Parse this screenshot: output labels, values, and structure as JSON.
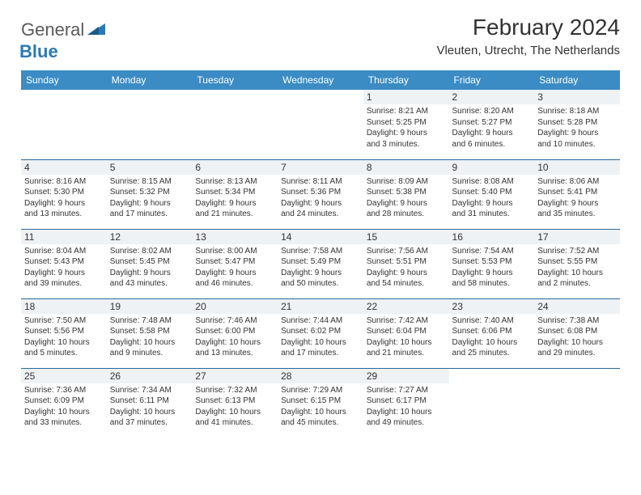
{
  "logo": {
    "text1": "General",
    "text2": "Blue"
  },
  "title": "February 2024",
  "location": "Vleuten, Utrecht, The Netherlands",
  "colors": {
    "header_bg": "#3b8bc4",
    "header_text": "#ffffff",
    "daynum_bg": "#eef2f5",
    "row_border": "#2a6a9a",
    "logo_blue": "#2a7ab8",
    "logo_gray": "#5a5a5a"
  },
  "weekdays": [
    "Sunday",
    "Monday",
    "Tuesday",
    "Wednesday",
    "Thursday",
    "Friday",
    "Saturday"
  ],
  "weeks": [
    [
      null,
      null,
      null,
      null,
      {
        "n": "1",
        "sr": "Sunrise: 8:21 AM",
        "ss": "Sunset: 5:25 PM",
        "d1": "Daylight: 9 hours",
        "d2": "and 3 minutes."
      },
      {
        "n": "2",
        "sr": "Sunrise: 8:20 AM",
        "ss": "Sunset: 5:27 PM",
        "d1": "Daylight: 9 hours",
        "d2": "and 6 minutes."
      },
      {
        "n": "3",
        "sr": "Sunrise: 8:18 AM",
        "ss": "Sunset: 5:28 PM",
        "d1": "Daylight: 9 hours",
        "d2": "and 10 minutes."
      }
    ],
    [
      {
        "n": "4",
        "sr": "Sunrise: 8:16 AM",
        "ss": "Sunset: 5:30 PM",
        "d1": "Daylight: 9 hours",
        "d2": "and 13 minutes."
      },
      {
        "n": "5",
        "sr": "Sunrise: 8:15 AM",
        "ss": "Sunset: 5:32 PM",
        "d1": "Daylight: 9 hours",
        "d2": "and 17 minutes."
      },
      {
        "n": "6",
        "sr": "Sunrise: 8:13 AM",
        "ss": "Sunset: 5:34 PM",
        "d1": "Daylight: 9 hours",
        "d2": "and 21 minutes."
      },
      {
        "n": "7",
        "sr": "Sunrise: 8:11 AM",
        "ss": "Sunset: 5:36 PM",
        "d1": "Daylight: 9 hours",
        "d2": "and 24 minutes."
      },
      {
        "n": "8",
        "sr": "Sunrise: 8:09 AM",
        "ss": "Sunset: 5:38 PM",
        "d1": "Daylight: 9 hours",
        "d2": "and 28 minutes."
      },
      {
        "n": "9",
        "sr": "Sunrise: 8:08 AM",
        "ss": "Sunset: 5:40 PM",
        "d1": "Daylight: 9 hours",
        "d2": "and 31 minutes."
      },
      {
        "n": "10",
        "sr": "Sunrise: 8:06 AM",
        "ss": "Sunset: 5:41 PM",
        "d1": "Daylight: 9 hours",
        "d2": "and 35 minutes."
      }
    ],
    [
      {
        "n": "11",
        "sr": "Sunrise: 8:04 AM",
        "ss": "Sunset: 5:43 PM",
        "d1": "Daylight: 9 hours",
        "d2": "and 39 minutes."
      },
      {
        "n": "12",
        "sr": "Sunrise: 8:02 AM",
        "ss": "Sunset: 5:45 PM",
        "d1": "Daylight: 9 hours",
        "d2": "and 43 minutes."
      },
      {
        "n": "13",
        "sr": "Sunrise: 8:00 AM",
        "ss": "Sunset: 5:47 PM",
        "d1": "Daylight: 9 hours",
        "d2": "and 46 minutes."
      },
      {
        "n": "14",
        "sr": "Sunrise: 7:58 AM",
        "ss": "Sunset: 5:49 PM",
        "d1": "Daylight: 9 hours",
        "d2": "and 50 minutes."
      },
      {
        "n": "15",
        "sr": "Sunrise: 7:56 AM",
        "ss": "Sunset: 5:51 PM",
        "d1": "Daylight: 9 hours",
        "d2": "and 54 minutes."
      },
      {
        "n": "16",
        "sr": "Sunrise: 7:54 AM",
        "ss": "Sunset: 5:53 PM",
        "d1": "Daylight: 9 hours",
        "d2": "and 58 minutes."
      },
      {
        "n": "17",
        "sr": "Sunrise: 7:52 AM",
        "ss": "Sunset: 5:55 PM",
        "d1": "Daylight: 10 hours",
        "d2": "and 2 minutes."
      }
    ],
    [
      {
        "n": "18",
        "sr": "Sunrise: 7:50 AM",
        "ss": "Sunset: 5:56 PM",
        "d1": "Daylight: 10 hours",
        "d2": "and 5 minutes."
      },
      {
        "n": "19",
        "sr": "Sunrise: 7:48 AM",
        "ss": "Sunset: 5:58 PM",
        "d1": "Daylight: 10 hours",
        "d2": "and 9 minutes."
      },
      {
        "n": "20",
        "sr": "Sunrise: 7:46 AM",
        "ss": "Sunset: 6:00 PM",
        "d1": "Daylight: 10 hours",
        "d2": "and 13 minutes."
      },
      {
        "n": "21",
        "sr": "Sunrise: 7:44 AM",
        "ss": "Sunset: 6:02 PM",
        "d1": "Daylight: 10 hours",
        "d2": "and 17 minutes."
      },
      {
        "n": "22",
        "sr": "Sunrise: 7:42 AM",
        "ss": "Sunset: 6:04 PM",
        "d1": "Daylight: 10 hours",
        "d2": "and 21 minutes."
      },
      {
        "n": "23",
        "sr": "Sunrise: 7:40 AM",
        "ss": "Sunset: 6:06 PM",
        "d1": "Daylight: 10 hours",
        "d2": "and 25 minutes."
      },
      {
        "n": "24",
        "sr": "Sunrise: 7:38 AM",
        "ss": "Sunset: 6:08 PM",
        "d1": "Daylight: 10 hours",
        "d2": "and 29 minutes."
      }
    ],
    [
      {
        "n": "25",
        "sr": "Sunrise: 7:36 AM",
        "ss": "Sunset: 6:09 PM",
        "d1": "Daylight: 10 hours",
        "d2": "and 33 minutes."
      },
      {
        "n": "26",
        "sr": "Sunrise: 7:34 AM",
        "ss": "Sunset: 6:11 PM",
        "d1": "Daylight: 10 hours",
        "d2": "and 37 minutes."
      },
      {
        "n": "27",
        "sr": "Sunrise: 7:32 AM",
        "ss": "Sunset: 6:13 PM",
        "d1": "Daylight: 10 hours",
        "d2": "and 41 minutes."
      },
      {
        "n": "28",
        "sr": "Sunrise: 7:29 AM",
        "ss": "Sunset: 6:15 PM",
        "d1": "Daylight: 10 hours",
        "d2": "and 45 minutes."
      },
      {
        "n": "29",
        "sr": "Sunrise: 7:27 AM",
        "ss": "Sunset: 6:17 PM",
        "d1": "Daylight: 10 hours",
        "d2": "and 49 minutes."
      },
      null,
      null
    ]
  ]
}
